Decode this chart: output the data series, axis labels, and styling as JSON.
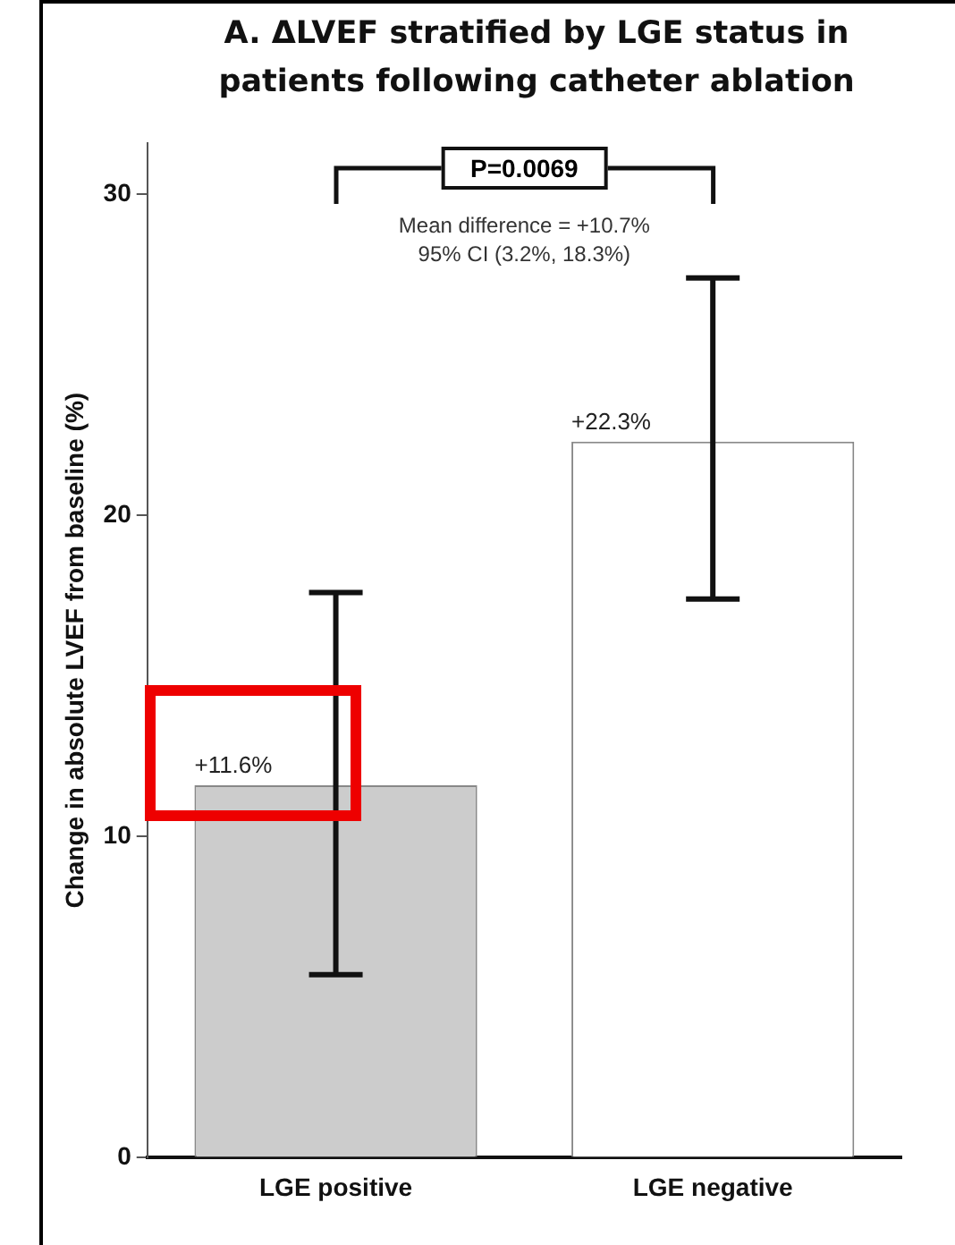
{
  "chart_data": {
    "type": "bar",
    "title": "A. ΔLVEF stratified by LGE status in patients following catheter ablation",
    "ylabel": "Change in absolute LVEF from baseline (%)",
    "categories": [
      "LGE positive",
      "LGE negative"
    ],
    "values": [
      11.6,
      22.3
    ],
    "colors": [
      "#cccccc",
      "#ffffff"
    ],
    "errors": [
      [
        5.7,
        17.6
      ],
      [
        17.4,
        27.4
      ]
    ],
    "value_labels": [
      "+11.6%",
      "+22.3%"
    ],
    "ylim": [
      0,
      31.6
    ],
    "yticks": [
      0,
      10,
      20,
      30
    ],
    "grid": false,
    "legend": false,
    "annotations": [
      "P=0.0069",
      "Mean difference = +10.7%",
      "95% CI (3.2%, 18.3%)"
    ]
  }
}
